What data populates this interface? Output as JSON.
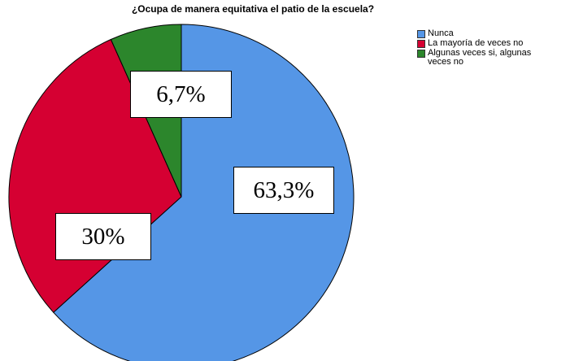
{
  "chart_data": {
    "type": "pie",
    "title": "¿Ocupa de manera equitativa el patio de la escuela?",
    "categories": [
      "Nunca",
      "La mayoría de veces no",
      "Algunas veces si, algunas veces no"
    ],
    "values": [
      63.3,
      30,
      6.7
    ],
    "value_labels": [
      "63,3%",
      "30%",
      "6,7%"
    ],
    "colors": [
      "#5596e6",
      "#d50032",
      "#2c862c"
    ],
    "legend": "right"
  }
}
